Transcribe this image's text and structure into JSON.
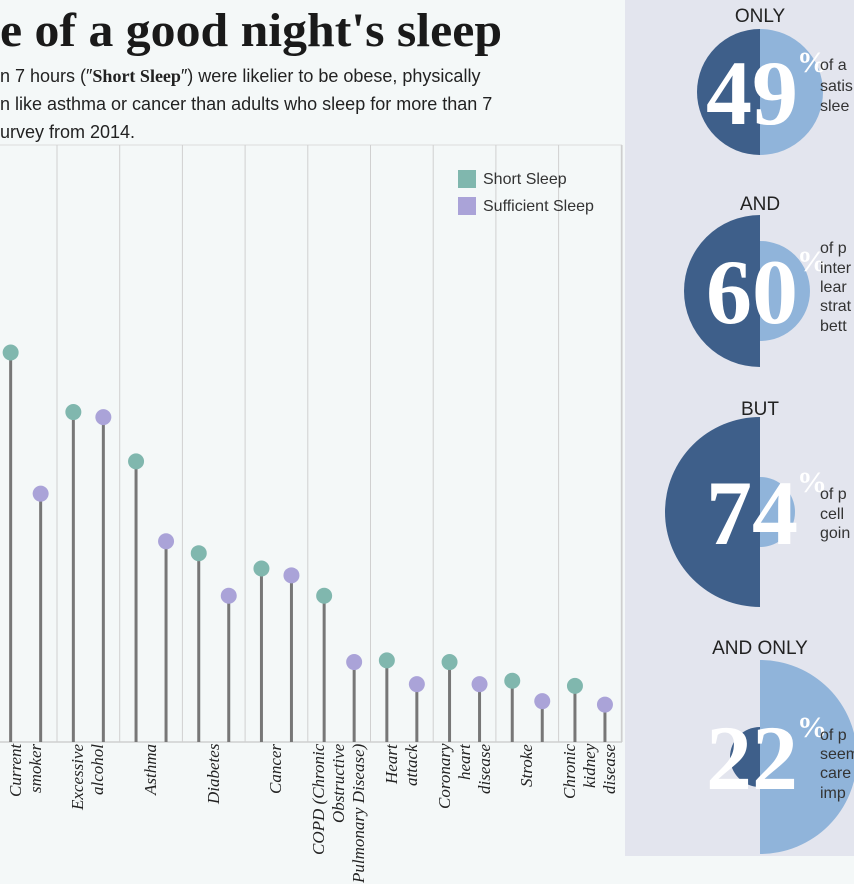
{
  "header": {
    "title": "e of a good night's sleep",
    "subtitle": [
      [
        "n 7 hours (″",
        "Short Sleep",
        "″) were likelier to be obese, physically"
      ],
      [
        "n like asthma or cancer than adults who sleep for more than 7"
      ],
      [
        "urvey from 2014."
      ]
    ]
  },
  "chart_data": {
    "type": "lollipop",
    "categories": [
      "Current\nsmoker",
      "Excessive\nalcohol",
      "Asthma",
      "Diabetes",
      "Cancer",
      "COPD (Chronic\nObstructive\nPulmonary Disease)",
      "Heart\nattack",
      "Coronary\nheart\ndisease",
      "Stroke",
      "Chronic\nkidney\ndisease"
    ],
    "series": [
      {
        "name": "Short Sleep",
        "color": "#80b7ae",
        "values": [
          22.9,
          19.4,
          16.5,
          11.1,
          10.2,
          8.6,
          4.8,
          4.7,
          3.6,
          3.3
        ]
      },
      {
        "name": "Sufficient Sleep",
        "color": "#aaa3d8",
        "values": [
          14.6,
          19.1,
          11.8,
          8.6,
          9.8,
          4.7,
          3.4,
          3.4,
          2.4,
          2.2
        ]
      }
    ],
    "ylim": [
      0,
      35.1
    ],
    "legend": "top-right"
  },
  "sidebar": {
    "stats": [
      {
        "label": "ONLY",
        "value": 49,
        "unit": "%",
        "text": [
          "of a",
          "satis",
          "slee"
        ]
      },
      {
        "label": "AND",
        "value": 60,
        "unit": "%",
        "text": [
          "of p",
          "inter",
          "lear",
          "strat",
          "bett"
        ]
      },
      {
        "label": "BUT",
        "value": 74,
        "unit": "%",
        "text": [
          "of p",
          "cell",
          "goin"
        ]
      },
      {
        "label": "AND ONLY",
        "value": 22,
        "unit": "%",
        "text": [
          "of p",
          "seem",
          "care",
          "imp"
        ]
      }
    ]
  }
}
